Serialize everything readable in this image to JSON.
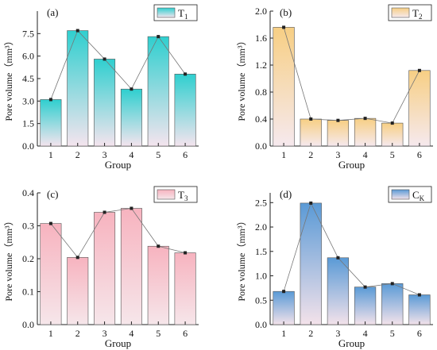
{
  "chart_data": [
    {
      "type": "bar",
      "panel_label": "(a)",
      "legend": {
        "name": "T",
        "subscript": "1",
        "position": "top-right"
      },
      "categories": [
        "1",
        "2",
        "3",
        "4",
        "5",
        "6"
      ],
      "values": [
        3.1,
        7.7,
        5.8,
        3.8,
        7.3,
        4.8
      ],
      "overlay": "line-with-markers",
      "xlabel": "Group",
      "ylabel": "Pore volume（mm³）",
      "ylim": [
        0,
        9
      ],
      "yticks": [
        "0.0",
        "1.5",
        "3.0",
        "4.5",
        "6.0",
        "7.5"
      ],
      "ytick_values": [
        0,
        1.5,
        3.0,
        4.5,
        6.0,
        7.5
      ],
      "colors": {
        "top": "#2fcfcf",
        "bottom": "#f4e4ee"
      },
      "grid": false
    },
    {
      "type": "bar",
      "panel_label": "(b)",
      "legend": {
        "name": "T",
        "subscript": "2",
        "position": "top-right"
      },
      "categories": [
        "1",
        "2",
        "3",
        "4",
        "5",
        "6"
      ],
      "values": [
        1.76,
        0.4,
        0.38,
        0.41,
        0.34,
        1.12
      ],
      "overlay": "line-with-markers",
      "xlabel": "Group",
      "ylabel": "Pore volume（mm³）",
      "ylim": [
        0,
        2.0
      ],
      "yticks": [
        "0.0",
        "0.4",
        "0.8",
        "1.2",
        "1.6",
        "2.0"
      ],
      "ytick_values": [
        0,
        0.4,
        0.8,
        1.2,
        1.6,
        2.0
      ],
      "colors": {
        "top": "#f7cf84",
        "bottom": "#f6e9ee"
      },
      "grid": false
    },
    {
      "type": "bar",
      "panel_label": "(c)",
      "legend": {
        "name": "T",
        "subscript": "3",
        "position": "top-right"
      },
      "categories": [
        "1",
        "2",
        "3",
        "4",
        "5",
        "6"
      ],
      "values": [
        0.307,
        0.204,
        0.341,
        0.353,
        0.238,
        0.218
      ],
      "overlay": "line-with-markers",
      "xlabel": "Group",
      "ylabel": "Pore volume（mm³）",
      "ylim": [
        0,
        0.4
      ],
      "yticks": [
        "0.0",
        "0.1",
        "0.2",
        "0.3",
        "0.4"
      ],
      "ytick_values": [
        0,
        0.1,
        0.2,
        0.3,
        0.4
      ],
      "colors": {
        "top": "#f7b3bf",
        "bottom": "#f6e6ea"
      },
      "grid": false
    },
    {
      "type": "bar",
      "panel_label": "(d)",
      "legend": {
        "name": "C",
        "subscript": "K",
        "position": "top-right"
      },
      "categories": [
        "1",
        "2",
        "3",
        "4",
        "5",
        "6"
      ],
      "values": [
        0.68,
        2.49,
        1.37,
        0.77,
        0.84,
        0.61
      ],
      "overlay": "line-with-markers",
      "xlabel": "Group",
      "ylabel": "Pore volume（mm³）",
      "ylim": [
        0,
        2.7
      ],
      "yticks": [
        "0.0",
        "0.5",
        "1.0",
        "1.5",
        "2.0",
        "2.5"
      ],
      "ytick_values": [
        0,
        0.5,
        1.0,
        1.5,
        2.0,
        2.5
      ],
      "colors": {
        "top": "#5a9ad6",
        "bottom": "#f3e2ea"
      },
      "grid": false
    }
  ]
}
